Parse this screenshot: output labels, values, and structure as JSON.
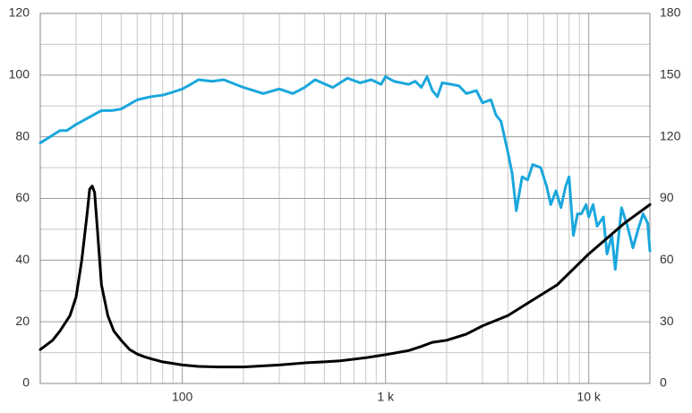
{
  "chart_data": {
    "type": "line",
    "xscale": "log",
    "grid": true,
    "xlim": [
      20,
      20000
    ],
    "xticks": [
      100,
      {
        "value": 1000,
        "label": "1 k"
      },
      {
        "value": 10000,
        "label": "10 k"
      }
    ],
    "xminor": [
      20,
      30,
      40,
      50,
      60,
      70,
      80,
      90,
      200,
      300,
      400,
      500,
      600,
      700,
      800,
      900,
      2000,
      3000,
      4000,
      5000,
      6000,
      7000,
      8000,
      9000,
      20000
    ],
    "ylim": [
      0,
      120
    ],
    "yticks": [
      0,
      20,
      40,
      60,
      80,
      100,
      120
    ],
    "yminor": [
      10,
      30,
      50,
      70,
      90,
      110
    ],
    "y2lim": [
      0,
      180
    ],
    "y2ticks": [
      0,
      30,
      60,
      90,
      120,
      150,
      180
    ],
    "series": [
      {
        "color": "#1aa7dd",
        "axis": "y",
        "x": [
          20,
          25,
          27,
          30,
          40,
          45,
          50,
          60,
          70,
          80,
          90,
          100,
          110,
          120,
          140,
          160,
          200,
          250,
          300,
          350,
          400,
          450,
          550,
          650,
          750,
          850,
          950,
          1000,
          1100,
          1300,
          1400,
          1500,
          1600,
          1700,
          1800,
          1900,
          2100,
          2300,
          2500,
          2800,
          3000,
          3300,
          3500,
          3700,
          4000,
          4200,
          4400,
          4700,
          5000,
          5300,
          5800,
          6200,
          6500,
          6900,
          7300,
          7700,
          8000,
          8400,
          8800,
          9200,
          9700,
          10000,
          10500,
          11000,
          11800,
          12300,
          13000,
          13500,
          14500,
          15500,
          16500,
          17500,
          18500,
          19500,
          20000
        ],
        "values": [
          78,
          82,
          82,
          84,
          88.5,
          88.5,
          89,
          92,
          93,
          93.5,
          94.5,
          95.5,
          97,
          98.5,
          98,
          98.5,
          96,
          94,
          95.5,
          94,
          96,
          98.5,
          96,
          99,
          97.5,
          98.5,
          97,
          99.5,
          98,
          97,
          98,
          96,
          99.5,
          95,
          93,
          97.5,
          97,
          96.5,
          94,
          95,
          91,
          92,
          87,
          85,
          75,
          68,
          56,
          67,
          66,
          71,
          70,
          64,
          58,
          62.5,
          57,
          64,
          67,
          48,
          55,
          55,
          58,
          54,
          58,
          51,
          54,
          42,
          48,
          37,
          57,
          51,
          44,
          50,
          55,
          52,
          43
        ]
      },
      {
        "color": "#000000",
        "axis": "y2",
        "x": [
          20,
          23,
          25,
          28,
          30,
          32,
          34,
          35,
          36,
          37,
          38,
          40,
          43,
          46,
          50,
          55,
          60,
          65,
          70,
          80,
          100,
          120,
          150,
          200,
          300,
          400,
          500,
          600,
          800,
          1000,
          1300,
          1500,
          1700,
          2000,
          2500,
          3000,
          4000,
          5000,
          7000,
          10000,
          15000,
          20000
        ],
        "values": [
          16.5,
          21,
          25.5,
          33,
          42,
          60,
          82.5,
          94.5,
          96,
          93,
          78,
          48,
          33,
          25.5,
          21,
          16.5,
          14.3,
          13,
          12,
          10.5,
          9,
          8.3,
          8,
          8,
          9,
          10,
          10.5,
          11,
          12.5,
          14,
          16,
          18,
          20,
          21,
          24,
          28,
          33,
          39,
          48,
          63,
          78,
          87
        ]
      }
    ]
  }
}
